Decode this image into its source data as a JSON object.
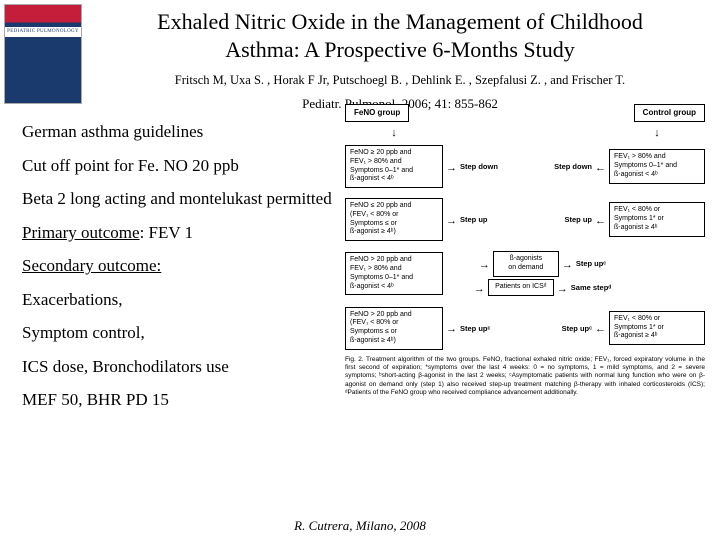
{
  "journal_bar": "PEDIATRIC PULMONOLOGY",
  "title_line1": "Exhaled Nitric Oxide in the Management of Childhood",
  "title_line2": "Asthma: A Prospective 6-Months Study",
  "authors": "Fritsch M, Uxa S. , Horak F Jr, Putschoegl B. , Dehlink E. , Szepfalusi Z. , and Frischer T.",
  "citation": "Pediatr. Pulmonol. 2006; 41: 855-862",
  "bullets": {
    "b1": "German asthma guidelines",
    "b2": "Cut off point for Fe. NO 20 ppb",
    "b3": "Beta 2 long acting and montelukast permitted",
    "b4a": "Primary outcome",
    "b4b": ": FEV 1",
    "b5": "Secondary outcome:",
    "b6": "Exacerbations,",
    "b7": "Symptom control,",
    "b8": "ICS dose, Bronchodilators use",
    "b9": "MEF 50, BHR PD 15"
  },
  "flowchart": {
    "head_left": "FeNO group",
    "head_right": "Control group",
    "boxL1": "FeNO ≥ 20 ppb and\nFEV₁ > 80% and\nSymptoms 0–1* and\nß-agonist < 4ᵇ",
    "boxR1": "FEV₁ > 80% and\nSymptoms 0–1* and\nß-agonist < 4ᵇ",
    "action1": "Step down",
    "boxL2": "FeNO ≤ 20 ppb and\n(FEV₁ < 80% or\nSymptoms ≤ or\nß-agonist ≥ 4ᵇ)",
    "boxR2": "FEV₁ < 80% or\nSymptoms 1* or\nß-agonist ≥ 4ᵇ",
    "action2": "Step up",
    "boxL3": "FeNO > 20 ppb and\nFEV₁ > 80% and\nSymptoms 0–1* and\nß-agonist < 4ᵇ",
    "midTop": "ß-agonists\non demand",
    "midBot": "Patients on ICSᵈ",
    "action3a": "Step upᶜ",
    "action3b": "Same stepᵈ",
    "boxL4": "FeNO > 20 ppb and\n(FEV₁ < 80% or\nSymptoms ≤ or\nß-agonist ≥ 4ᵇ)",
    "boxR4": "FEV₁ < 80% or\nSymptoms 1* or\nß-agonist ≥ 4ᵇ",
    "action4": "Step upᶜ",
    "caption": "Fig. 2. Treatment algorithm of the two groups. FeNO, fractional exhaled nitric oxide; FEV₁, forced expiratory volume in the first second of expiration; *symptoms over the last 4 weeks: 0 = no symptoms, 1 = mild symptoms, and 2 = severe symptoms; ᵇshort-acting β-agonist in the last 2 weeks; ᶜAsymptomatic patients with normal lung function who were on β-agonist on demand only (step 1) also received step-up treatment matching β-therapy with inhaled corticosteroids (ICS); ᵈPatients of the FeNO group who received compliance advancement additionally."
  },
  "footer": "R. Cutrera, Milano, 2008"
}
